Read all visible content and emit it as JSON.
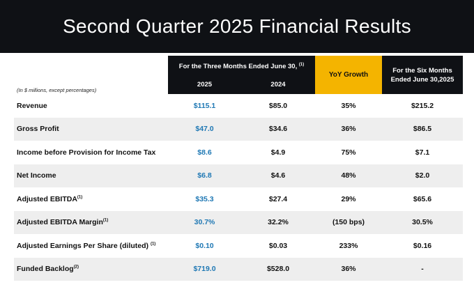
{
  "title": "Second Quarter 2025 Financial Results",
  "header": {
    "units_note": "(In $ millions, except percentages)",
    "three_months": "For the Three Months Ended June 30,",
    "three_months_note": "(1)",
    "year_current": "2025",
    "year_prior": "2024",
    "yoy": "YoY Growth",
    "six_months": "For the Six Months Ended June 30,2025"
  },
  "colors": {
    "title_bg": "#0f1115",
    "header_bg": "#0f1115",
    "yoy_bg": "#f4b400",
    "current_year_text": "#1f78b4",
    "row_shade": "#eeeeee"
  },
  "rows": [
    {
      "label": "Revenue",
      "note": "",
      "current": "$115.1",
      "prior": "$85.0",
      "yoy": "35%",
      "six": "$215.2"
    },
    {
      "label": "Gross Profit",
      "note": "",
      "current": "$47.0",
      "prior": "$34.6",
      "yoy": "36%",
      "six": "$86.5"
    },
    {
      "label": "Income before Provision for Income Tax",
      "note": "",
      "current": "$8.6",
      "prior": "$4.9",
      "yoy": "75%",
      "six": "$7.1"
    },
    {
      "label": "Net Income",
      "note": "",
      "current": "$6.8",
      "prior": "$4.6",
      "yoy": "48%",
      "six": "$2.0"
    },
    {
      "label": "Adjusted EBITDA",
      "note": "(1)",
      "current": "$35.3",
      "prior": "$27.4",
      "yoy": "29%",
      "six": "$65.6"
    },
    {
      "label": "Adjusted EBITDA Margin",
      "note": "(1)",
      "current": "30.7%",
      "prior": "32.2%",
      "yoy": "(150 bps)",
      "six": "30.5%"
    },
    {
      "label": "Adjusted Earnings Per Share (diluted) ",
      "note": "(1)",
      "current": "$0.10",
      "prior": "$0.03",
      "yoy": "233%",
      "six": "$0.16"
    },
    {
      "label": "Funded Backlog",
      "note": "(2)",
      "current": "$719.0",
      "prior": "$528.0",
      "yoy": "36%",
      "six": "-"
    }
  ]
}
